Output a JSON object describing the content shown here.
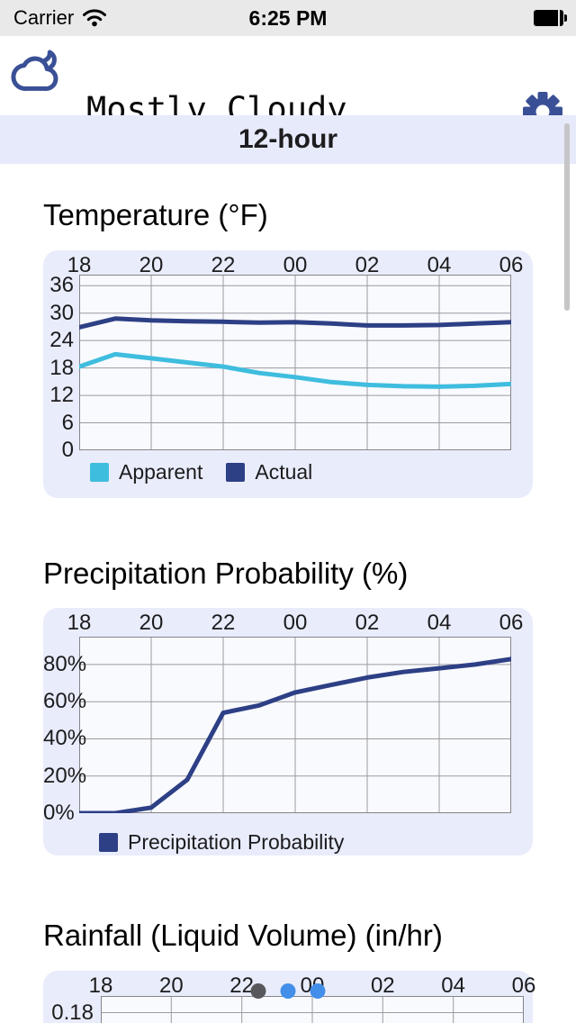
{
  "status_bar": {
    "carrier": "Carrier",
    "time": "6:25 PM"
  },
  "icons": {
    "status_left": "wifi-icon",
    "status_right": "battery-icon",
    "header_left": "cloud-moon-icon",
    "header_right": "gear-icon"
  },
  "header": {
    "condition": "Mostly Cloudy"
  },
  "tab_bar": {
    "selected": "12-hour"
  },
  "sections": [
    {
      "title": "Temperature (°F)"
    },
    {
      "title": "Precipitation Probability (%)"
    },
    {
      "title": "Rainfall (Liquid Volume) (in/hr)"
    }
  ],
  "colors": {
    "accent_navy": "#3a5096",
    "line_navy": "#2d3f85",
    "line_cyan": "#3fbdde",
    "card_bg": "#e9ecfb",
    "band_bg": "#e7eafa",
    "dot_gray": "#58585c",
    "dot_blue": "#428ee8"
  },
  "chart_data": [
    {
      "type": "line",
      "title": "Temperature (°F)",
      "x_hours": [
        18,
        19,
        20,
        21,
        22,
        23,
        0,
        1,
        2,
        3,
        4,
        5,
        6
      ],
      "x_tick_labels": [
        "18",
        "20",
        "22",
        "00",
        "02",
        "04",
        "06"
      ],
      "y_ticks": [
        36,
        30,
        24,
        18,
        12,
        6,
        0
      ],
      "y_tick_labels": [
        "36",
        "30",
        "24",
        "18",
        "12",
        "6",
        "0"
      ],
      "ylim": [
        0,
        38.4
      ],
      "grid": true,
      "legend_position": "bottom",
      "series": [
        {
          "name": "Apparent",
          "color": "#3fbdde",
          "values": [
            18.3,
            21.0,
            20.1,
            19.2,
            18.3,
            16.9,
            16.0,
            14.9,
            14.3,
            14.0,
            13.9,
            14.1,
            14.5
          ]
        },
        {
          "name": "Actual",
          "color": "#2d3f85",
          "values": [
            26.9,
            28.8,
            28.4,
            28.2,
            28.1,
            27.9,
            28.0,
            27.7,
            27.3,
            27.3,
            27.4,
            27.7,
            28.0
          ]
        }
      ]
    },
    {
      "type": "line",
      "title": "Precipitation Probability (%)",
      "x_hours": [
        18,
        19,
        20,
        21,
        22,
        23,
        0,
        1,
        2,
        3,
        4,
        5,
        6
      ],
      "x_tick_labels": [
        "18",
        "20",
        "22",
        "00",
        "02",
        "04",
        "06"
      ],
      "y_ticks": [
        80,
        60,
        40,
        20,
        0
      ],
      "y_tick_labels": [
        "80%",
        "60%",
        "40%",
        "20%",
        "0%"
      ],
      "ylim": [
        0,
        95
      ],
      "grid": true,
      "legend_position": "bottom",
      "series": [
        {
          "name": "Precipitation Probability",
          "color": "#2d3f85",
          "values": [
            0,
            0,
            3,
            18,
            54,
            58,
            65,
            69,
            73,
            76,
            78,
            80,
            83
          ]
        }
      ]
    },
    {
      "type": "line",
      "title": "Rainfall (Liquid Volume) (in/hr)",
      "x_tick_labels": [
        "18",
        "20",
        "22",
        "00",
        "02",
        "04",
        "06"
      ],
      "y_tick_labels_visible": [
        "0.18"
      ],
      "partial": true,
      "series": []
    }
  ],
  "page_control": {
    "dots": [
      {
        "color": "#58585c",
        "active": true
      },
      {
        "color": "#428ee8",
        "active": false
      },
      {
        "color": "#428ee8",
        "active": false
      }
    ]
  }
}
